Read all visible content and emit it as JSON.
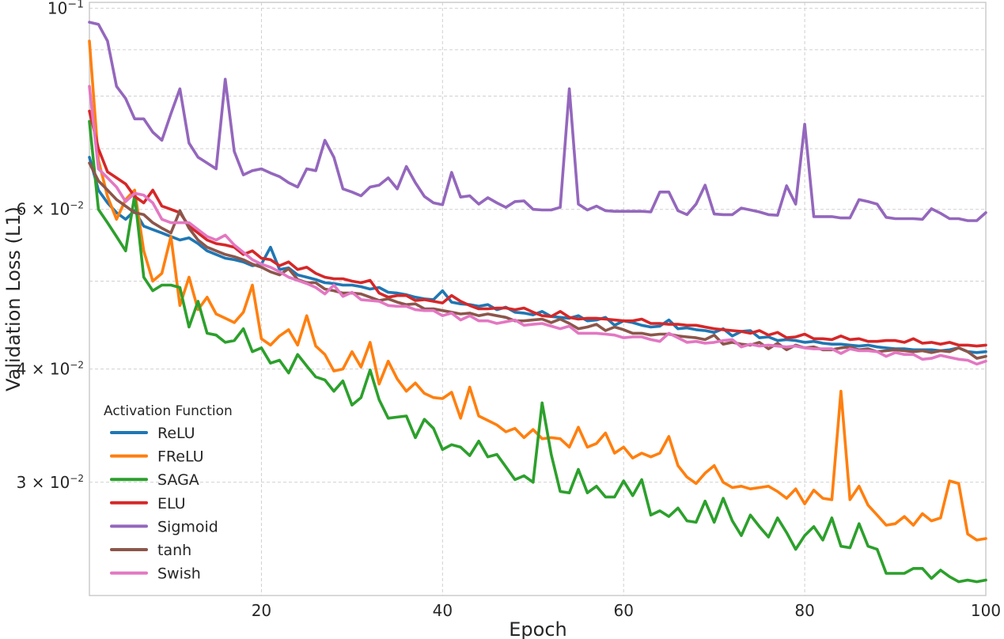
{
  "chart_data": {
    "type": "line",
    "xlabel": "Epoch",
    "ylabel": "Validation Loss (L1)",
    "xlim": [
      1,
      100
    ],
    "ylim": [
      0.0225,
      0.1015
    ],
    "yscale": "log",
    "grid": true,
    "x_ticks": [
      20,
      40,
      60,
      80,
      100
    ],
    "x_tick_labels": [
      "20",
      "40",
      "60",
      "80",
      "100"
    ],
    "y_ticks": [
      0.03,
      0.04,
      0.06,
      0.1
    ],
    "y_tick_labels": [
      {
        "base": "3 × 10",
        "exp": "−2"
      },
      {
        "base": "4 × 10",
        "exp": "−2"
      },
      {
        "base": "6 × 10",
        "exp": "−2"
      },
      {
        "base": "10",
        "exp": "−1"
      }
    ],
    "legend": {
      "title": "Activation Function",
      "position": "lower-left"
    },
    "x": [
      1,
      2,
      3,
      4,
      5,
      6,
      7,
      8,
      9,
      10,
      11,
      12,
      13,
      14,
      15,
      16,
      17,
      18,
      19,
      20,
      21,
      22,
      23,
      24,
      25,
      26,
      27,
      28,
      29,
      30,
      31,
      32,
      33,
      34,
      35,
      36,
      37,
      38,
      39,
      40,
      41,
      42,
      43,
      44,
      45,
      46,
      47,
      48,
      49,
      50,
      51,
      52,
      53,
      54,
      55,
      56,
      57,
      58,
      59,
      60,
      61,
      62,
      63,
      64,
      65,
      66,
      67,
      68,
      69,
      70,
      71,
      72,
      73,
      74,
      75,
      76,
      77,
      78,
      79,
      80,
      81,
      82,
      83,
      84,
      85,
      86,
      87,
      88,
      89,
      90,
      91,
      92,
      93,
      94,
      95,
      96,
      97,
      98,
      99,
      100
    ],
    "series": [
      {
        "name": "ReLU",
        "color": "#1f77b4",
        "values": [
          0.0685,
          0.063,
          0.061,
          0.0595,
          0.0585,
          0.0598,
          0.0575,
          0.057,
          0.0565,
          0.056,
          0.0555,
          0.0558,
          0.055,
          0.054,
          0.0535,
          0.053,
          0.0528,
          0.0525,
          0.052,
          0.0522,
          0.0545,
          0.0515,
          0.0517,
          0.0508,
          0.0505,
          0.0502,
          0.0498,
          0.0497,
          0.0495,
          0.0495,
          0.0493,
          0.049,
          0.0492,
          0.0486,
          0.0485,
          0.0483,
          0.048,
          0.0478,
          0.0477,
          0.0488,
          0.0474,
          0.0472,
          0.0471,
          0.0469,
          0.0471,
          0.0465,
          0.0468,
          0.0462,
          0.0461,
          0.0459,
          0.0463,
          0.0457,
          0.0456,
          0.0455,
          0.0458,
          0.0452,
          0.0453,
          0.0456,
          0.0447,
          0.0452,
          0.045,
          0.0447,
          0.0445,
          0.0446,
          0.0453,
          0.0443,
          0.0444,
          0.0442,
          0.0441,
          0.0439,
          0.0443,
          0.0435,
          0.044,
          0.0441,
          0.0433,
          0.0434,
          0.043,
          0.0431,
          0.043,
          0.0428,
          0.0429,
          0.0427,
          0.0426,
          0.0426,
          0.0425,
          0.0424,
          0.0425,
          0.0423,
          0.0422,
          0.0421,
          0.0421,
          0.042,
          0.042,
          0.042,
          0.0419,
          0.042,
          0.0422,
          0.0418,
          0.0417,
          0.0418
        ]
      },
      {
        "name": "FReLU",
        "color": "#ff7f0e",
        "values": [
          0.092,
          0.068,
          0.062,
          0.0585,
          0.0615,
          0.063,
          0.054,
          0.05,
          0.051,
          0.056,
          0.047,
          0.0505,
          0.0465,
          0.048,
          0.046,
          0.0455,
          0.045,
          0.0462,
          0.0495,
          0.0432,
          0.0425,
          0.0435,
          0.0442,
          0.0425,
          0.0458,
          0.0424,
          0.0415,
          0.0398,
          0.04,
          0.0418,
          0.0402,
          0.0428,
          0.0385,
          0.0408,
          0.039,
          0.0378,
          0.0386,
          0.0376,
          0.0372,
          0.0371,
          0.0377,
          0.0353,
          0.0382,
          0.0355,
          0.0351,
          0.0347,
          0.0341,
          0.0344,
          0.0336,
          0.0343,
          0.0335,
          0.0336,
          0.0335,
          0.0328,
          0.0345,
          0.0328,
          0.0331,
          0.034,
          0.0323,
          0.0328,
          0.0319,
          0.0323,
          0.032,
          0.0323,
          0.0337,
          0.0313,
          0.0304,
          0.0299,
          0.0307,
          0.0313,
          0.03,
          0.0296,
          0.0297,
          0.0295,
          0.0296,
          0.0297,
          0.0293,
          0.0288,
          0.0295,
          0.0284,
          0.0294,
          0.0288,
          0.0287,
          0.0378,
          0.0287,
          0.0297,
          0.0283,
          0.0276,
          0.0269,
          0.027,
          0.0275,
          0.0269,
          0.0277,
          0.0272,
          0.0274,
          0.0301,
          0.0299,
          0.0263,
          0.0259,
          0.026
        ]
      },
      {
        "name": "SAGA",
        "color": "#2ca02c",
        "values": [
          0.075,
          0.06,
          0.058,
          0.056,
          0.054,
          0.0622,
          0.0505,
          0.0488,
          0.0495,
          0.0495,
          0.0492,
          0.0445,
          0.0475,
          0.0438,
          0.0436,
          0.0428,
          0.043,
          0.0443,
          0.0418,
          0.0422,
          0.0406,
          0.0409,
          0.0396,
          0.0415,
          0.0403,
          0.0392,
          0.0389,
          0.0378,
          0.0388,
          0.0365,
          0.0372,
          0.0399,
          0.037,
          0.0353,
          0.0354,
          0.0355,
          0.0336,
          0.0352,
          0.0344,
          0.0326,
          0.033,
          0.0328,
          0.0321,
          0.0333,
          0.032,
          0.0322,
          0.0312,
          0.0302,
          0.0305,
          0.03,
          0.0367,
          0.0322,
          0.0293,
          0.0292,
          0.031,
          0.0292,
          0.0297,
          0.0289,
          0.0289,
          0.0301,
          0.029,
          0.0302,
          0.0276,
          0.0279,
          0.0275,
          0.0281,
          0.0272,
          0.0271,
          0.0286,
          0.0271,
          0.0288,
          0.0272,
          0.0262,
          0.0276,
          0.0268,
          0.0261,
          0.0274,
          0.0264,
          0.0253,
          0.0262,
          0.0268,
          0.0259,
          0.0274,
          0.0255,
          0.0254,
          0.027,
          0.0255,
          0.0253,
          0.0238,
          0.0238,
          0.0238,
          0.0241,
          0.0241,
          0.0235,
          0.024,
          0.0236,
          0.0233,
          0.0234,
          0.0233,
          0.0234
        ]
      },
      {
        "name": "ELU",
        "color": "#d62728",
        "values": [
          0.077,
          0.07,
          0.066,
          0.065,
          0.064,
          0.062,
          0.061,
          0.063,
          0.0605,
          0.06,
          0.0595,
          0.0575,
          0.0565,
          0.0555,
          0.055,
          0.0548,
          0.0545,
          0.0535,
          0.054,
          0.053,
          0.0528,
          0.052,
          0.0525,
          0.0515,
          0.0518,
          0.051,
          0.0505,
          0.0503,
          0.0503,
          0.05,
          0.0498,
          0.0501,
          0.0485,
          0.048,
          0.0482,
          0.0482,
          0.0476,
          0.0477,
          0.0475,
          0.0473,
          0.0482,
          0.0475,
          0.047,
          0.0466,
          0.0466,
          0.0467,
          0.0467,
          0.0465,
          0.0467,
          0.0462,
          0.0458,
          0.0457,
          0.0463,
          0.0456,
          0.0454,
          0.0455,
          0.0455,
          0.0454,
          0.0453,
          0.0452,
          0.0452,
          0.0454,
          0.0449,
          0.0449,
          0.0448,
          0.0448,
          0.0447,
          0.0447,
          0.0445,
          0.0443,
          0.0442,
          0.0441,
          0.044,
          0.0438,
          0.0441,
          0.0436,
          0.0439,
          0.0433,
          0.0434,
          0.0437,
          0.0432,
          0.0432,
          0.0431,
          0.0435,
          0.0431,
          0.0432,
          0.0429,
          0.0429,
          0.043,
          0.043,
          0.0428,
          0.0432,
          0.0427,
          0.0428,
          0.0426,
          0.0428,
          0.0425,
          0.0425,
          0.0424,
          0.0425
        ]
      },
      {
        "name": "Sigmoid",
        "color": "#9467bd",
        "values": [
          0.0965,
          0.096,
          0.092,
          0.082,
          0.0795,
          0.0755,
          0.0755,
          0.073,
          0.0715,
          0.0765,
          0.0815,
          0.071,
          0.0685,
          0.0675,
          0.0665,
          0.0835,
          0.0695,
          0.0655,
          0.0662,
          0.0665,
          0.0658,
          0.0652,
          0.0642,
          0.0635,
          0.0665,
          0.0662,
          0.0715,
          0.0685,
          0.0632,
          0.0627,
          0.0621,
          0.0635,
          0.0638,
          0.065,
          0.0632,
          0.0669,
          0.0642,
          0.062,
          0.061,
          0.0607,
          0.0659,
          0.0619,
          0.0621,
          0.0608,
          0.0618,
          0.061,
          0.0603,
          0.0612,
          0.0613,
          0.06,
          0.0599,
          0.0599,
          0.0603,
          0.0815,
          0.0608,
          0.0599,
          0.0605,
          0.0598,
          0.0597,
          0.0597,
          0.0597,
          0.0597,
          0.0596,
          0.0627,
          0.0627,
          0.0598,
          0.0592,
          0.0608,
          0.0638,
          0.0593,
          0.0592,
          0.0592,
          0.0602,
          0.0599,
          0.0596,
          0.0592,
          0.0591,
          0.0637,
          0.0608,
          0.0745,
          0.0589,
          0.0589,
          0.0589,
          0.0587,
          0.0587,
          0.0615,
          0.0612,
          0.0608,
          0.0588,
          0.0586,
          0.0586,
          0.0586,
          0.0585,
          0.0601,
          0.0594,
          0.0586,
          0.0586,
          0.0583,
          0.0583,
          0.0595
        ]
      },
      {
        "name": "tanh",
        "color": "#8c564b",
        "values": [
          0.0675,
          0.0645,
          0.063,
          0.0615,
          0.0605,
          0.0595,
          0.0592,
          0.058,
          0.0572,
          0.0565,
          0.0598,
          0.0572,
          0.0555,
          0.0545,
          0.054,
          0.0535,
          0.0532,
          0.0528,
          0.0522,
          0.0518,
          0.0512,
          0.0508,
          0.0516,
          0.0502,
          0.0498,
          0.0498,
          0.049,
          0.0488,
          0.0485,
          0.0485,
          0.0484,
          0.048,
          0.0476,
          0.0478,
          0.0474,
          0.0471,
          0.0472,
          0.0466,
          0.0466,
          0.0464,
          0.0462,
          0.046,
          0.0461,
          0.0458,
          0.046,
          0.0458,
          0.0456,
          0.0452,
          0.0452,
          0.0453,
          0.0454,
          0.045,
          0.0454,
          0.0449,
          0.0443,
          0.0445,
          0.0448,
          0.0441,
          0.0445,
          0.0442,
          0.0438,
          0.0438,
          0.0436,
          0.0437,
          0.0437,
          0.0435,
          0.0434,
          0.0433,
          0.0431,
          0.0436,
          0.0426,
          0.0428,
          0.0426,
          0.0425,
          0.0428,
          0.0421,
          0.0427,
          0.042,
          0.0425,
          0.0422,
          0.0423,
          0.042,
          0.042,
          0.0422,
          0.0423,
          0.042,
          0.0421,
          0.0418,
          0.0419,
          0.042,
          0.0419,
          0.0418,
          0.0419,
          0.0417,
          0.0419,
          0.0418,
          0.0422,
          0.0418,
          0.0411,
          0.0413
        ]
      },
      {
        "name": "Swish",
        "color": "#e377c2",
        "values": [
          0.082,
          0.0665,
          0.065,
          0.0635,
          0.0612,
          0.0625,
          0.0622,
          0.061,
          0.0585,
          0.058,
          0.058,
          0.058,
          0.057,
          0.056,
          0.0555,
          0.0562,
          0.0548,
          0.0538,
          0.0528,
          0.0522,
          0.0518,
          0.0512,
          0.0505,
          0.0501,
          0.0497,
          0.0492,
          0.0484,
          0.0495,
          0.0481,
          0.0486,
          0.0477,
          0.0476,
          0.0475,
          0.047,
          0.0469,
          0.0469,
          0.0465,
          0.0464,
          0.0464,
          0.0458,
          0.0461,
          0.0453,
          0.0458,
          0.0452,
          0.0452,
          0.0449,
          0.0451,
          0.0453,
          0.0447,
          0.0448,
          0.0449,
          0.0446,
          0.0443,
          0.0446,
          0.0438,
          0.0438,
          0.0438,
          0.0437,
          0.0436,
          0.0433,
          0.0434,
          0.0434,
          0.0431,
          0.0429,
          0.0438,
          0.0433,
          0.0428,
          0.0429,
          0.0427,
          0.0428,
          0.043,
          0.0431,
          0.0423,
          0.0426,
          0.0424,
          0.0425,
          0.0424,
          0.0423,
          0.0424,
          0.0422,
          0.0421,
          0.0421,
          0.0421,
          0.0416,
          0.0421,
          0.0419,
          0.0419,
          0.0418,
          0.0413,
          0.0417,
          0.0415,
          0.0415,
          0.041,
          0.0411,
          0.0414,
          0.0412,
          0.041,
          0.0409,
          0.0405,
          0.0408
        ]
      }
    ]
  }
}
